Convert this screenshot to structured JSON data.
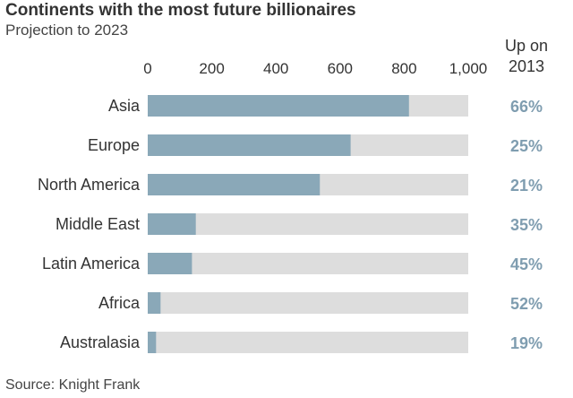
{
  "chart_data": {
    "type": "bar",
    "orientation": "horizontal",
    "title": "Continents with the most future billionaires",
    "subtitle": "Projection to 2023",
    "categories": [
      "Asia",
      "Europe",
      "North America",
      "Middle East",
      "Latin America",
      "Africa",
      "Australasia"
    ],
    "values": [
      815,
      633,
      537,
      150,
      138,
      40,
      26
    ],
    "xlim": [
      0,
      1000
    ],
    "ticks": [
      0,
      200,
      400,
      600,
      800,
      1000
    ],
    "tick_labels": [
      "0",
      "200",
      "400",
      "600",
      "800",
      "1,000"
    ],
    "change_header": [
      "Up on",
      "2013"
    ],
    "change": [
      "66%",
      "25%",
      "21%",
      "35%",
      "45%",
      "52%",
      "19%"
    ],
    "source": "Source: Knight Frank",
    "colors": {
      "bar": "#8aa8b8",
      "track": "#dddddd",
      "change_text": "#7f9db0",
      "text": "#333333"
    }
  }
}
